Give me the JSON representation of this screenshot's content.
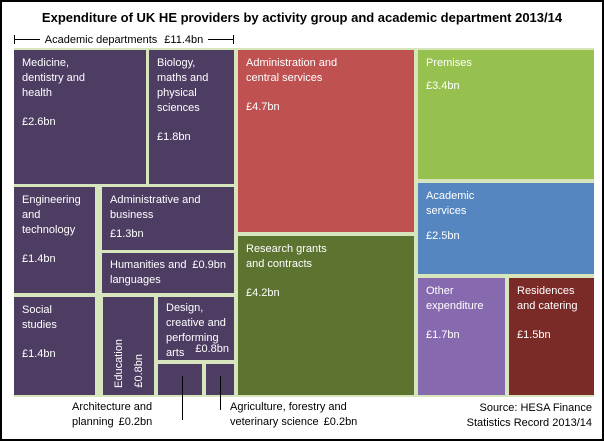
{
  "title": "Expenditure of UK HE providers by activity group and academic department 2013/14",
  "bracket": {
    "label": "Academic departments",
    "value": "£11.4bn"
  },
  "source": "Source: HESA Finance Statistics Record 2013/14",
  "colors": {
    "academic_department": "#4d3d63",
    "admin_central": "#c05151",
    "research": "#5d7430",
    "premises": "#97c14f",
    "academic_services": "#5586c0",
    "other_expenditure": "#8669ae",
    "residences_catering": "#7b2b27",
    "canvas_gap": "#d7e5bd",
    "text_on_tile": "#ffffff",
    "text": "#000000"
  },
  "tiles": {
    "medicine": {
      "name": "Medicine, dentistry and health",
      "value": "£2.6bn"
    },
    "biology": {
      "name": "Biology, maths and physical sciences",
      "value": "£1.8bn"
    },
    "engineering": {
      "name": "Engineering and technology",
      "value": "£1.4bn"
    },
    "administrative": {
      "name": "Administrative and business",
      "value": "£1.3bn"
    },
    "humanities": {
      "name": "Humanities and languages",
      "value": "£0.9bn"
    },
    "social": {
      "name": "Social studies",
      "value": "£1.4bn"
    },
    "education": {
      "name": "Education",
      "value": "£0.8bn"
    },
    "design": {
      "name": "Design, creative and performing arts",
      "value": "£0.8bn"
    },
    "architecture": {
      "name": "Architecture and planning",
      "value": "£0.2bn"
    },
    "agriculture": {
      "name": "Agriculture, forestry and veterinary science",
      "value": "£0.2bn"
    },
    "admin_central": {
      "name": "Administration and central services",
      "value": "£4.7bn"
    },
    "research": {
      "name": "Research grants and contracts",
      "value": "£4.2bn"
    },
    "premises": {
      "name": "Premises",
      "value": "£3.4bn"
    },
    "academic_services": {
      "name": "Academic services",
      "value": "£2.5bn"
    },
    "other": {
      "name": "Other expenditure",
      "value": "£1.7bn"
    },
    "residences": {
      "name": "Residences and catering",
      "value": "£1.5bn"
    }
  },
  "chart_data": {
    "type": "treemap",
    "title": "Expenditure of UK HE providers by activity group and academic department 2013/14",
    "unit": "£bn",
    "groups": [
      {
        "name": "Academic departments",
        "total": 11.4,
        "children": [
          {
            "name": "Medicine, dentistry and health",
            "value": 2.6
          },
          {
            "name": "Biology, maths and physical sciences",
            "value": 1.8
          },
          {
            "name": "Engineering and technology",
            "value": 1.4
          },
          {
            "name": "Social studies",
            "value": 1.4
          },
          {
            "name": "Administrative and business",
            "value": 1.3
          },
          {
            "name": "Humanities and languages",
            "value": 0.9
          },
          {
            "name": "Education",
            "value": 0.8
          },
          {
            "name": "Design, creative and performing arts",
            "value": 0.8
          },
          {
            "name": "Architecture and planning",
            "value": 0.2
          },
          {
            "name": "Agriculture, forestry and veterinary science",
            "value": 0.2
          }
        ]
      },
      {
        "name": "Administration and central services",
        "value": 4.7
      },
      {
        "name": "Research grants and contracts",
        "value": 4.2
      },
      {
        "name": "Premises",
        "value": 3.4
      },
      {
        "name": "Academic services",
        "value": 2.5
      },
      {
        "name": "Other expenditure",
        "value": 1.7
      },
      {
        "name": "Residences and catering",
        "value": 1.5
      }
    ],
    "source": "Source: HESA Finance Statistics Record 2013/14"
  }
}
